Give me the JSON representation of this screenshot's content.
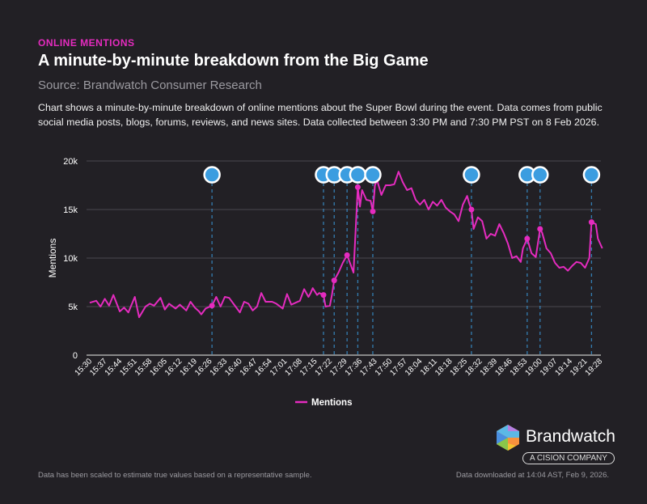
{
  "header": {
    "kicker": "ONLINE MENTIONS",
    "title": "A minute-by-minute breakdown from the Big Game",
    "source": "Source: Brandwatch Consumer Research",
    "description": "Chart shows a minute-by-minute breakdown of online mentions about the Super Bowl during the event. Data comes from public social media posts, blogs, forums, reviews, and news sites. Data collected between 3:30 PM and 7:30 PM PST on 8 Feb 2026."
  },
  "chart_data": {
    "type": "line",
    "xlabel": "",
    "ylabel": "Mentions",
    "ylim": [
      0,
      20000
    ],
    "yticks": [
      "0",
      "5k",
      "10k",
      "15k",
      "20k"
    ],
    "ytick_values": [
      0,
      5000,
      10000,
      15000,
      20000
    ],
    "xticks": [
      "15:30",
      "15:37",
      "15:44",
      "15:51",
      "15:58",
      "16:05",
      "16:12",
      "16:19",
      "16:26",
      "16:33",
      "16:40",
      "16:47",
      "16:54",
      "17:01",
      "17:08",
      "17:15",
      "17:22",
      "17:29",
      "17:36",
      "17:43",
      "17:50",
      "17:57",
      "18:04",
      "18:11",
      "18:18",
      "18:25",
      "18:32",
      "18:39",
      "18:46",
      "18:53",
      "19:00",
      "19:07",
      "19:14",
      "19:21",
      "19:28"
    ],
    "xlim": [
      "15:30",
      "19:30"
    ],
    "grid": true,
    "legend": "bottom",
    "series": [
      {
        "name": "Mentions",
        "color": "#e52bbf",
        "x": [
          "15:30",
          "15:33",
          "15:35",
          "15:37",
          "15:39",
          "15:41",
          "15:44",
          "15:46",
          "15:48",
          "15:51",
          "15:53",
          "15:56",
          "15:58",
          "16:00",
          "16:03",
          "16:05",
          "16:07",
          "16:10",
          "16:12",
          "16:15",
          "16:17",
          "16:19",
          "16:21",
          "16:22",
          "16:24",
          "16:27",
          "16:29",
          "16:31",
          "16:33",
          "16:35",
          "16:38",
          "16:40",
          "16:42",
          "16:44",
          "16:46",
          "16:48",
          "16:50",
          "16:52",
          "16:55",
          "16:57",
          "17:00",
          "17:02",
          "17:04",
          "17:06",
          "17:08",
          "17:10",
          "17:12",
          "17:13",
          "17:14",
          "17:16",
          "17:17",
          "17:19",
          "17:20",
          "17:22",
          "17:23",
          "17:24",
          "17:26",
          "17:28",
          "17:30",
          "17:32",
          "17:33",
          "17:35",
          "17:36",
          "17:37",
          "17:39",
          "17:41",
          "17:42",
          "17:43",
          "17:44",
          "17:46",
          "17:48",
          "17:50",
          "17:52",
          "17:54",
          "17:56",
          "17:58",
          "18:00",
          "18:02",
          "18:04",
          "18:06",
          "18:08",
          "18:10",
          "18:12",
          "18:14",
          "18:16",
          "18:18",
          "18:20",
          "18:22",
          "18:24",
          "18:26",
          "18:27",
          "18:28",
          "18:29",
          "18:31",
          "18:33",
          "18:35",
          "18:37",
          "18:39",
          "18:41",
          "18:43",
          "18:45",
          "18:47",
          "18:49",
          "18:51",
          "18:52",
          "18:54",
          "18:56",
          "18:58",
          "19:00",
          "19:01",
          "19:03",
          "19:05",
          "19:07",
          "19:09",
          "19:11",
          "19:13",
          "19:15",
          "19:17",
          "19:19",
          "19:21",
          "19:23",
          "19:24",
          "19:26",
          "19:27",
          "19:29"
        ],
        "y": [
          5400,
          5600,
          5000,
          5800,
          5100,
          6200,
          4500,
          4900,
          4400,
          6000,
          3900,
          5000,
          5300,
          5100,
          5900,
          4700,
          5300,
          4800,
          5200,
          4600,
          5500,
          4900,
          4500,
          4200,
          4800,
          5100,
          6000,
          5000,
          6000,
          5900,
          5000,
          4400,
          5500,
          5300,
          4600,
          5000,
          6400,
          5500,
          5500,
          5300,
          4800,
          6300,
          5200,
          5400,
          5600,
          6800,
          6000,
          6400,
          6900,
          6200,
          6400,
          6200,
          5000,
          5100,
          6300,
          7700,
          8500,
          9500,
          10300,
          9100,
          8500,
          17300,
          15300,
          17000,
          16000,
          15900,
          14800,
          17500,
          18000,
          16500,
          17500,
          17500,
          17600,
          18900,
          17800,
          17000,
          17200,
          16000,
          15500,
          16000,
          15000,
          15800,
          15400,
          16000,
          15200,
          14800,
          14500,
          13800,
          15500,
          16400,
          15600,
          15000,
          13000,
          14200,
          13800,
          12000,
          12500,
          12300,
          13500,
          12600,
          11500,
          10000,
          10200,
          9600,
          11000,
          12000,
          10500,
          10100,
          13000,
          12600,
          11000,
          10500,
          9500,
          9000,
          9100,
          8700,
          9200,
          9600,
          9500,
          9000,
          10000,
          13700,
          13500,
          12000,
          11000
        ]
      }
    ],
    "markers": [
      {
        "time": "16:27",
        "value": 5100
      },
      {
        "time": "17:19",
        "value": 6200
      },
      {
        "time": "17:24",
        "value": 7700
      },
      {
        "time": "17:30",
        "value": 10300
      },
      {
        "time": "17:35",
        "value": 17300
      },
      {
        "time": "17:42",
        "value": 14800
      },
      {
        "time": "18:28",
        "value": 15000
      },
      {
        "time": "18:54",
        "value": 12000
      },
      {
        "time": "19:00",
        "value": 13000
      },
      {
        "time": "19:24",
        "value": 13700
      }
    ],
    "marker_color": "#3b9de0"
  },
  "footer": {
    "note": "Data has been scaled to estimate true values based on a representative sample.",
    "downloaded": "Data downloaded at 14:04 AST, Feb 9, 2026."
  },
  "logo": {
    "name": "Brandwatch",
    "badge": "A CISION COMPANY"
  }
}
